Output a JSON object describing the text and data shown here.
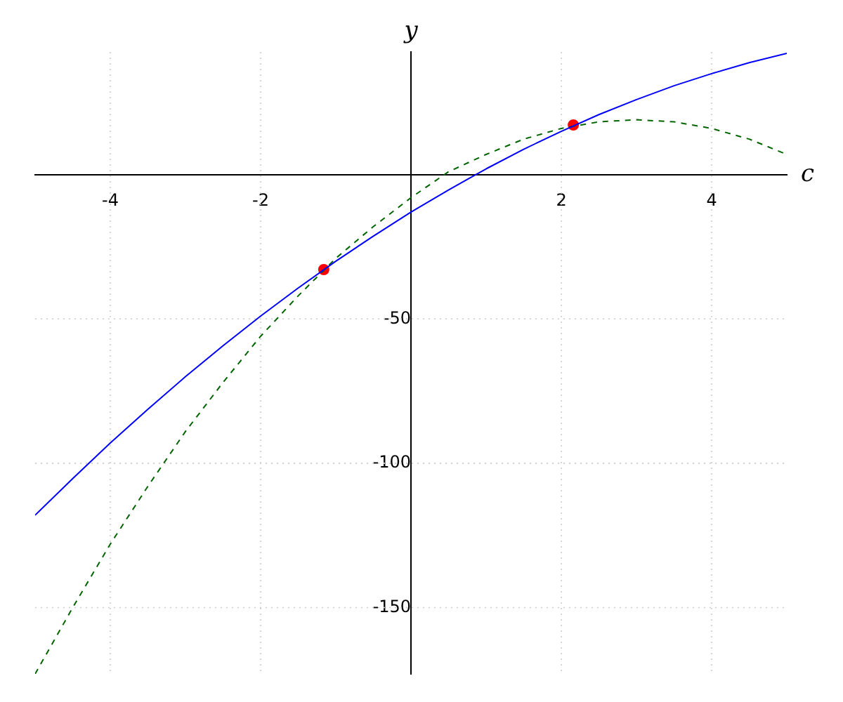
{
  "chart_data": {
    "type": "line",
    "xlabel": "c",
    "ylabel": "y",
    "xlim": [
      -5,
      5
    ],
    "ylim": [
      -173,
      42.5
    ],
    "xticks": [
      -4,
      -2,
      2,
      4
    ],
    "yticks": [
      -150,
      -100,
      -50
    ],
    "grid": true,
    "legend": false,
    "series": [
      {
        "type": "line",
        "color": "#0000ff",
        "line_style": "solid",
        "marker": "none",
        "x": [
          -5,
          -4.5,
          -4,
          -3.5,
          -3,
          -2.5,
          -2,
          -1.5,
          -1,
          -0.5,
          0,
          0.5,
          1,
          1.5,
          2,
          2.5,
          3,
          3.5,
          4,
          4.5,
          5
        ],
        "values": [
          -118,
          -105.3,
          -93,
          -81.3,
          -70,
          -59.3,
          -49,
          -39.3,
          -30,
          -21.3,
          -13,
          -5.3,
          2,
          8.8,
          15,
          20.8,
          26,
          30.8,
          35,
          38.8,
          42
        ]
      },
      {
        "type": "line",
        "color": "#006400",
        "line_style": "dashed",
        "marker": "none",
        "x": [
          -5,
          -4.5,
          -4,
          -3.5,
          -3,
          -2.5,
          -2,
          -1.5,
          -1,
          -0.5,
          0,
          0.5,
          1,
          1.5,
          2,
          2.5,
          3,
          3.5,
          4,
          4.5,
          5
        ],
        "values": [
          -173,
          -150,
          -128,
          -108,
          -89,
          -72,
          -56,
          -42,
          -29,
          -18,
          -8,
          1,
          7,
          12.3,
          16,
          18.3,
          19,
          18.3,
          16,
          12.3,
          7
        ]
      },
      {
        "type": "scatter",
        "color": "#ff0000",
        "marker": "circle",
        "x": [
          -1.16,
          2.16
        ],
        "values": [
          -32.9,
          17.2
        ]
      }
    ]
  }
}
